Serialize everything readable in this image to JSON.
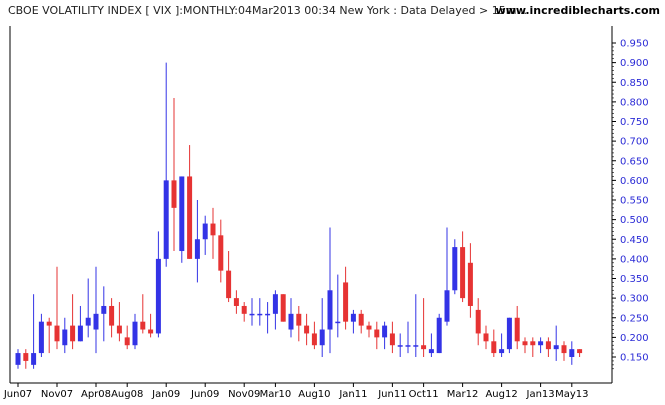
{
  "header": {
    "title": "CBOE VOLATILITY INDEX [ VIX ]:MONTHLY:04Mar2013 00:34 New York : Data Delayed > 15m...",
    "site": "www.incrediblecharts.com"
  },
  "colors": {
    "up": "#3333e6",
    "down": "#e63333",
    "axis": "#000000",
    "ytick": "#2b2bd6",
    "plot_bg": "#ffffff"
  },
  "chart_data": {
    "type": "candlestick",
    "title": "CBOE VOLATILITY INDEX [ VIX ]:MONTHLY:04Mar2013 00:34 New York : Data Delayed > 15m...",
    "ylim": [
      0.115,
      0.96
    ],
    "y_ticks": [
      "0.950",
      "0.900",
      "0.850",
      "0.800",
      "0.750",
      "0.700",
      "0.650",
      "0.600",
      "0.550",
      "0.500",
      "0.450",
      "0.400",
      "0.350",
      "0.300",
      "0.250",
      "0.200",
      "0.150"
    ],
    "x_tick_labels": [
      "Jun07",
      "Nov07",
      "Apr08",
      "Aug08",
      "Jan09",
      "Jun09",
      "Nov09",
      "Mar10",
      "Aug10",
      "Jan11",
      "Jun11",
      "Oct11",
      "Mar12",
      "Aug12",
      "Jan13",
      "May13"
    ],
    "grid": false,
    "candles": [
      {
        "m": "2007-06",
        "o": 0.13,
        "h": 0.17,
        "l": 0.12,
        "c": 0.16
      },
      {
        "m": "2007-07",
        "o": 0.16,
        "h": 0.17,
        "l": 0.12,
        "c": 0.14
      },
      {
        "m": "2007-08",
        "o": 0.13,
        "h": 0.31,
        "l": 0.12,
        "c": 0.16
      },
      {
        "m": "2007-09",
        "o": 0.16,
        "h": 0.26,
        "l": 0.15,
        "c": 0.24
      },
      {
        "m": "2007-10",
        "o": 0.24,
        "h": 0.25,
        "l": 0.16,
        "c": 0.23
      },
      {
        "m": "2007-11",
        "o": 0.23,
        "h": 0.38,
        "l": 0.17,
        "c": 0.19
      },
      {
        "m": "2007-12",
        "o": 0.18,
        "h": 0.25,
        "l": 0.16,
        "c": 0.22
      },
      {
        "m": "2008-01",
        "o": 0.23,
        "h": 0.31,
        "l": 0.17,
        "c": 0.19
      },
      {
        "m": "2008-02",
        "o": 0.19,
        "h": 0.28,
        "l": 0.19,
        "c": 0.23
      },
      {
        "m": "2008-03",
        "o": 0.23,
        "h": 0.35,
        "l": 0.2,
        "c": 0.25
      },
      {
        "m": "2008-04",
        "o": 0.22,
        "h": 0.38,
        "l": 0.16,
        "c": 0.26
      },
      {
        "m": "2008-05",
        "o": 0.26,
        "h": 0.33,
        "l": 0.19,
        "c": 0.28
      },
      {
        "m": "2008-06",
        "o": 0.28,
        "h": 0.3,
        "l": 0.2,
        "c": 0.23
      },
      {
        "m": "2008-07",
        "o": 0.23,
        "h": 0.29,
        "l": 0.19,
        "c": 0.21
      },
      {
        "m": "2008-08",
        "o": 0.2,
        "h": 0.23,
        "l": 0.17,
        "c": 0.18
      },
      {
        "m": "2008-09",
        "o": 0.18,
        "h": 0.26,
        "l": 0.17,
        "c": 0.24
      },
      {
        "m": "2008-10",
        "o": 0.24,
        "h": 0.31,
        "l": 0.21,
        "c": 0.22
      },
      {
        "m": "2008-11",
        "o": 0.22,
        "h": 0.26,
        "l": 0.2,
        "c": 0.21
      },
      {
        "m": "2008-12",
        "o": 0.21,
        "h": 0.47,
        "l": 0.2,
        "c": 0.4
      },
      {
        "m": "2009-01",
        "o": 0.4,
        "h": 0.9,
        "l": 0.38,
        "c": 0.6
      },
      {
        "m": "2009-02",
        "o": 0.6,
        "h": 0.81,
        "l": 0.42,
        "c": 0.53
      },
      {
        "m": "2009-03",
        "o": 0.42,
        "h": 0.61,
        "l": 0.39,
        "c": 0.61
      },
      {
        "m": "2009-04",
        "o": 0.61,
        "h": 0.69,
        "l": 0.4,
        "c": 0.4
      },
      {
        "m": "2009-05",
        "o": 0.4,
        "h": 0.55,
        "l": 0.34,
        "c": 0.45
      },
      {
        "m": "2009-06",
        "o": 0.45,
        "h": 0.51,
        "l": 0.41,
        "c": 0.49
      },
      {
        "m": "2009-07",
        "o": 0.49,
        "h": 0.53,
        "l": 0.4,
        "c": 0.46
      },
      {
        "m": "2009-08",
        "o": 0.46,
        "h": 0.5,
        "l": 0.34,
        "c": 0.37
      },
      {
        "m": "2009-09",
        "o": 0.37,
        "h": 0.42,
        "l": 0.29,
        "c": 0.3
      },
      {
        "m": "2009-10",
        "o": 0.3,
        "h": 0.32,
        "l": 0.26,
        "c": 0.28
      },
      {
        "m": "2009-11",
        "o": 0.28,
        "h": 0.29,
        "l": 0.24,
        "c": 0.26
      },
      {
        "m": "2009-12",
        "o": 0.26,
        "h": 0.3,
        "l": 0.23,
        "c": 0.26
      },
      {
        "m": "2010-01",
        "o": 0.26,
        "h": 0.3,
        "l": 0.23,
        "c": 0.26
      },
      {
        "m": "2010-02",
        "o": 0.26,
        "h": 0.29,
        "l": 0.21,
        "c": 0.26
      },
      {
        "m": "2010-03",
        "o": 0.26,
        "h": 0.32,
        "l": 0.22,
        "c": 0.31
      },
      {
        "m": "2010-04",
        "o": 0.31,
        "h": 0.31,
        "l": 0.24,
        "c": 0.24
      },
      {
        "m": "2010-05",
        "o": 0.22,
        "h": 0.3,
        "l": 0.2,
        "c": 0.26
      },
      {
        "m": "2010-06",
        "o": 0.26,
        "h": 0.28,
        "l": 0.19,
        "c": 0.23
      },
      {
        "m": "2010-07",
        "o": 0.23,
        "h": 0.26,
        "l": 0.18,
        "c": 0.21
      },
      {
        "m": "2010-08",
        "o": 0.21,
        "h": 0.24,
        "l": 0.17,
        "c": 0.18
      },
      {
        "m": "2010-09",
        "o": 0.18,
        "h": 0.3,
        "l": 0.15,
        "c": 0.22
      },
      {
        "m": "2010-10",
        "o": 0.22,
        "h": 0.48,
        "l": 0.16,
        "c": 0.32
      },
      {
        "m": "2010-11",
        "o": 0.24,
        "h": 0.36,
        "l": 0.2,
        "c": 0.24
      },
      {
        "m": "2010-12",
        "o": 0.34,
        "h": 0.38,
        "l": 0.22,
        "c": 0.24
      },
      {
        "m": "2011-01",
        "o": 0.24,
        "h": 0.27,
        "l": 0.21,
        "c": 0.26
      },
      {
        "m": "2011-02",
        "o": 0.26,
        "h": 0.27,
        "l": 0.21,
        "c": 0.23
      },
      {
        "m": "2011-03",
        "o": 0.23,
        "h": 0.24,
        "l": 0.2,
        "c": 0.22
      },
      {
        "m": "2011-04",
        "o": 0.22,
        "h": 0.24,
        "l": 0.17,
        "c": 0.2
      },
      {
        "m": "2011-05",
        "o": 0.2,
        "h": 0.24,
        "l": 0.17,
        "c": 0.23
      },
      {
        "m": "2011-06",
        "o": 0.21,
        "h": 0.24,
        "l": 0.16,
        "c": 0.18
      },
      {
        "m": "2011-07",
        "o": 0.18,
        "h": 0.21,
        "l": 0.15,
        "c": 0.18
      },
      {
        "m": "2011-08",
        "o": 0.18,
        "h": 0.24,
        "l": 0.16,
        "c": 0.18
      },
      {
        "m": "2011-09",
        "o": 0.18,
        "h": 0.31,
        "l": 0.15,
        "c": 0.18
      },
      {
        "m": "2011-10",
        "o": 0.18,
        "h": 0.3,
        "l": 0.15,
        "c": 0.17
      },
      {
        "m": "2011-11",
        "o": 0.16,
        "h": 0.21,
        "l": 0.15,
        "c": 0.17
      },
      {
        "m": "2011-12",
        "o": 0.16,
        "h": 0.26,
        "l": 0.16,
        "c": 0.25
      },
      {
        "m": "2012-01",
        "o": 0.24,
        "h": 0.48,
        "l": 0.23,
        "c": 0.32
      },
      {
        "m": "2012-02",
        "o": 0.32,
        "h": 0.45,
        "l": 0.31,
        "c": 0.43
      },
      {
        "m": "2012-03",
        "o": 0.43,
        "h": 0.47,
        "l": 0.29,
        "c": 0.3
      },
      {
        "m": "2012-04",
        "o": 0.39,
        "h": 0.44,
        "l": 0.25,
        "c": 0.28
      },
      {
        "m": "2012-05",
        "o": 0.27,
        "h": 0.3,
        "l": 0.18,
        "c": 0.21
      },
      {
        "m": "2012-06",
        "o": 0.21,
        "h": 0.23,
        "l": 0.17,
        "c": 0.19
      },
      {
        "m": "2012-07",
        "o": 0.19,
        "h": 0.22,
        "l": 0.15,
        "c": 0.16
      },
      {
        "m": "2012-08",
        "o": 0.16,
        "h": 0.21,
        "l": 0.15,
        "c": 0.17
      },
      {
        "m": "2012-09",
        "o": 0.17,
        "h": 0.25,
        "l": 0.16,
        "c": 0.25
      },
      {
        "m": "2012-10",
        "o": 0.25,
        "h": 0.28,
        "l": 0.17,
        "c": 0.19
      },
      {
        "m": "2012-11",
        "o": 0.19,
        "h": 0.2,
        "l": 0.16,
        "c": 0.18
      },
      {
        "m": "2012-12",
        "o": 0.19,
        "h": 0.2,
        "l": 0.15,
        "c": 0.18
      },
      {
        "m": "2013-01",
        "o": 0.18,
        "h": 0.2,
        "l": 0.16,
        "c": 0.19
      },
      {
        "m": "2013-02",
        "o": 0.19,
        "h": 0.2,
        "l": 0.15,
        "c": 0.17
      },
      {
        "m": "2013-03",
        "o": 0.17,
        "h": 0.23,
        "l": 0.14,
        "c": 0.18
      },
      {
        "m": "2013-04",
        "o": 0.18,
        "h": 0.19,
        "l": 0.14,
        "c": 0.16
      },
      {
        "m": "2013-05",
        "o": 0.15,
        "h": 0.19,
        "l": 0.13,
        "c": 0.17
      },
      {
        "m": "2013-06",
        "o": 0.17,
        "h": 0.17,
        "l": 0.15,
        "c": 0.16
      }
    ]
  }
}
